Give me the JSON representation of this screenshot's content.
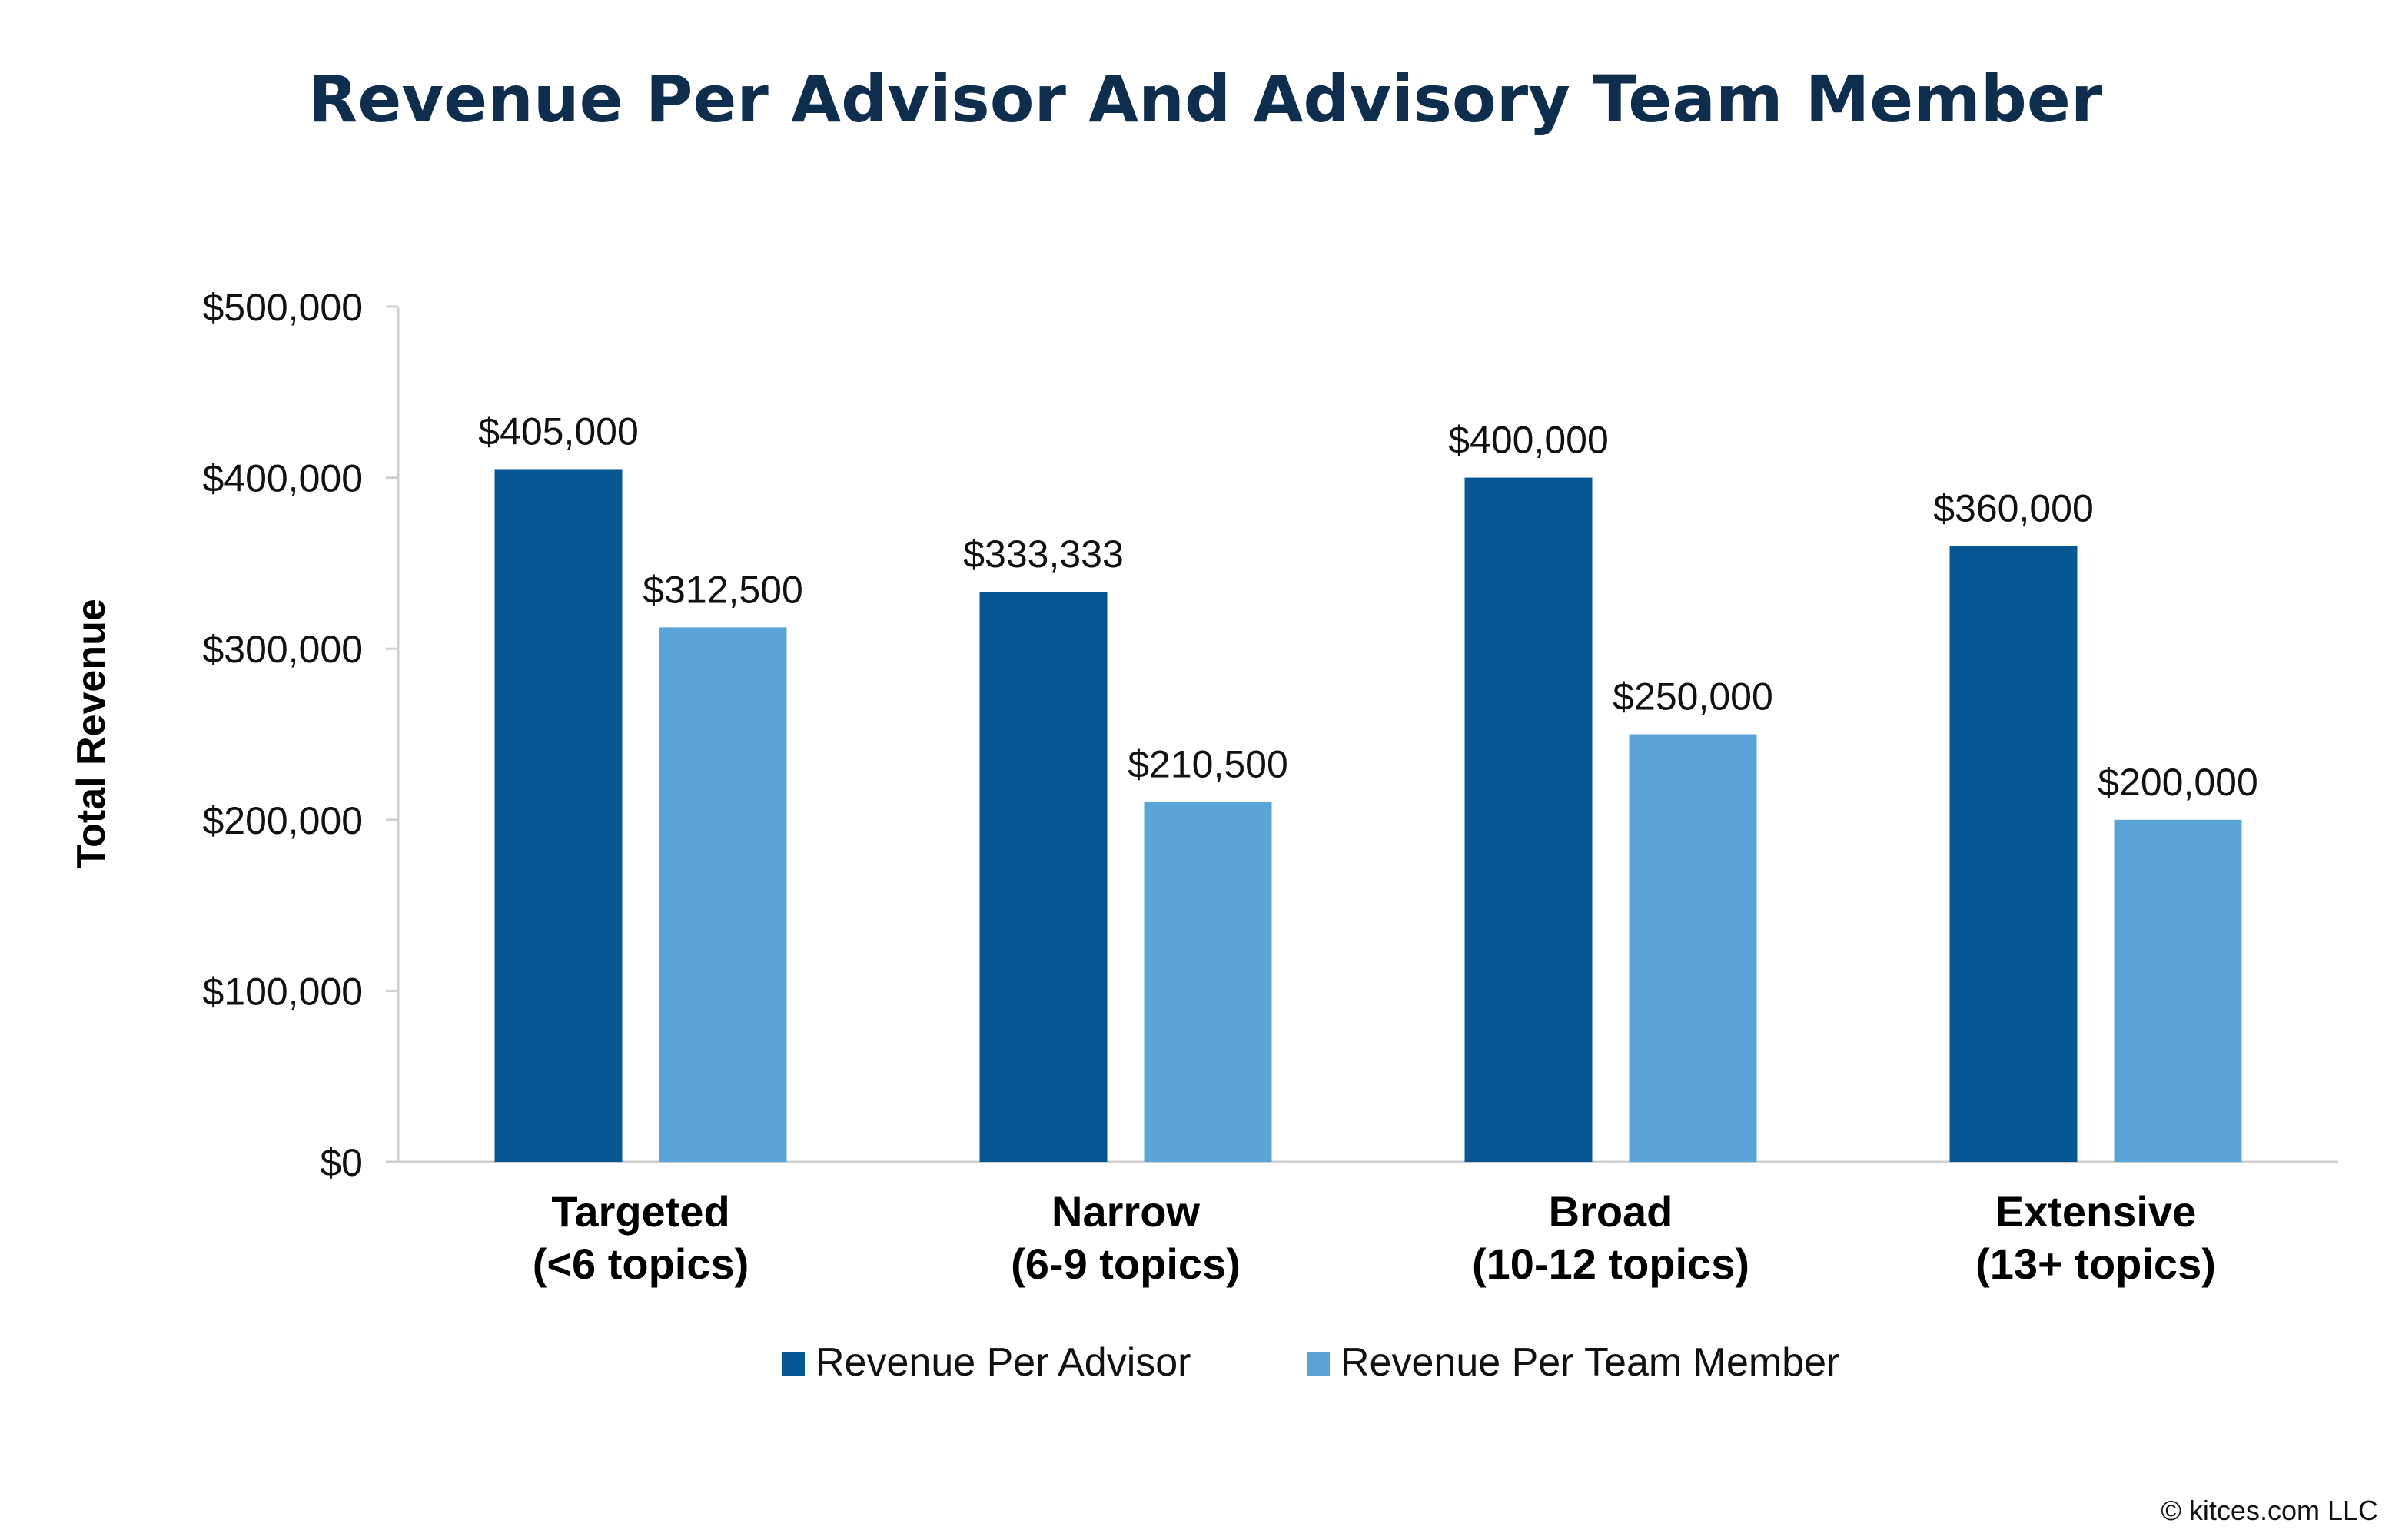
{
  "chart_data": {
    "type": "bar",
    "title": "Revenue Per Advisor And Advisory Team Member",
    "xlabel": "",
    "ylabel": "Total Revenue",
    "categories": [
      [
        "Targeted",
        "(<6 topics)"
      ],
      [
        "Narrow",
        "(6-9 topics)"
      ],
      [
        "Broad",
        "(10-12 topics)"
      ],
      [
        "Extensive",
        "(13+ topics)"
      ]
    ],
    "series": [
      {
        "name": "Revenue Per Advisor",
        "color": "#075694",
        "values": [
          405000,
          333333,
          400000,
          360000
        ],
        "labels": [
          "$405,000",
          "$333,333",
          "$400,000",
          "$360,000"
        ]
      },
      {
        "name": "Revenue Per Team Member",
        "color": "#5aa4d8",
        "values": [
          312500,
          210500,
          250000,
          200000
        ],
        "labels": [
          "$312,500",
          "$210,500",
          "$250,000",
          "$200,000"
        ]
      }
    ],
    "ylim": [
      0,
      500000
    ],
    "yticks": [
      0,
      100000,
      200000,
      300000,
      400000,
      500000
    ],
    "ytick_labels": [
      "$0",
      "$100,000",
      "$200,000",
      "$300,000",
      "$400,000",
      "$500,000"
    ],
    "grid": false,
    "legend_position": "bottom"
  },
  "credit": "© kitces.com LLC"
}
